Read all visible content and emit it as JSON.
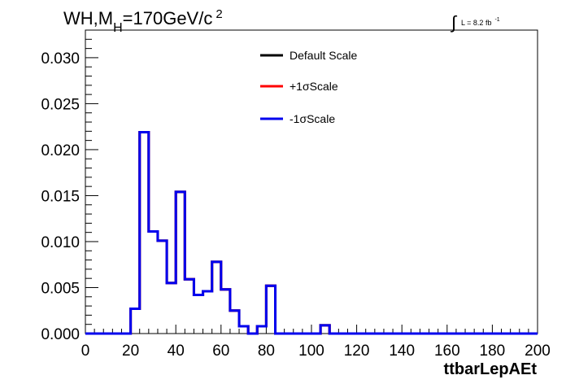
{
  "chart_data": {
    "type": "histogram",
    "title_main": "WH,M",
    "title_sub": "H",
    "title_rest": "=170GeV/c",
    "title_sup": "2",
    "lumi_integral": "∫",
    "lumi_text": "L = 8.2 fb",
    "lumi_sup": "-1",
    "xlabel": "ttbarLepAEt",
    "ylabel": "",
    "xlim": [
      0,
      200
    ],
    "ylim": [
      0,
      0.033
    ],
    "x_ticks": [
      "0",
      "20",
      "40",
      "60",
      "80",
      "100",
      "120",
      "140",
      "160",
      "180",
      "200"
    ],
    "x_tick_values": [
      0,
      20,
      40,
      60,
      80,
      100,
      120,
      140,
      160,
      180,
      200
    ],
    "y_ticks": [
      "0.000",
      "0.005",
      "0.010",
      "0.015",
      "0.020",
      "0.025",
      "0.030"
    ],
    "y_tick_values": [
      0,
      0.005,
      0.01,
      0.015,
      0.02,
      0.025,
      0.03
    ],
    "bin_edges": [
      0,
      4,
      8,
      12,
      16,
      20,
      24,
      28,
      32,
      36,
      40,
      44,
      48,
      52,
      56,
      60,
      64,
      68,
      72,
      76,
      80,
      84,
      88,
      92,
      96,
      100,
      104,
      108,
      112,
      116,
      120,
      124,
      128,
      132,
      136,
      140,
      144,
      148,
      152,
      156,
      160,
      164,
      168,
      172,
      176,
      180,
      184,
      188,
      192,
      196,
      200
    ],
    "series": [
      {
        "name": "Default Scale",
        "color": "#000000",
        "values": [
          0,
          0,
          0,
          0,
          0,
          0.0027,
          0.0219,
          0.0111,
          0.0101,
          0.0055,
          0.0154,
          0.0059,
          0.0042,
          0.0046,
          0.0078,
          0.0048,
          0.0025,
          0.0008,
          0,
          0.0008,
          0.0052,
          0,
          0,
          0,
          0,
          0,
          0.0009,
          0,
          0,
          0,
          0,
          0,
          0,
          0,
          0,
          0,
          0,
          0,
          0,
          0,
          0,
          0,
          0,
          0,
          0,
          0,
          0,
          0,
          0,
          0
        ]
      },
      {
        "name": "+1σScale",
        "color": "#ff0000",
        "values": [
          0,
          0,
          0,
          0,
          0,
          0.0027,
          0.0219,
          0.0111,
          0.0101,
          0.0055,
          0.0154,
          0.0059,
          0.0042,
          0.0046,
          0.0078,
          0.0048,
          0.0025,
          0.0008,
          0,
          0.0008,
          0.0052,
          0,
          0,
          0,
          0,
          0,
          0.0009,
          0,
          0,
          0,
          0,
          0,
          0,
          0,
          0,
          0,
          0,
          0,
          0,
          0,
          0,
          0,
          0,
          0,
          0,
          0,
          0,
          0,
          0,
          0
        ]
      },
      {
        "name": "-1σScale",
        "color": "#0000ee",
        "values": [
          0,
          0,
          0,
          0,
          0,
          0.0027,
          0.0219,
          0.0111,
          0.0101,
          0.0055,
          0.0154,
          0.0059,
          0.0042,
          0.0046,
          0.0078,
          0.0048,
          0.0025,
          0.0008,
          0,
          0.0008,
          0.0052,
          0,
          0,
          0,
          0,
          0,
          0.0009,
          0,
          0,
          0,
          0,
          0,
          0,
          0,
          0,
          0,
          0,
          0,
          0,
          0,
          0,
          0,
          0,
          0,
          0,
          0,
          0,
          0,
          0,
          0
        ]
      }
    ],
    "legend_placement": "top-center",
    "grid": false
  }
}
